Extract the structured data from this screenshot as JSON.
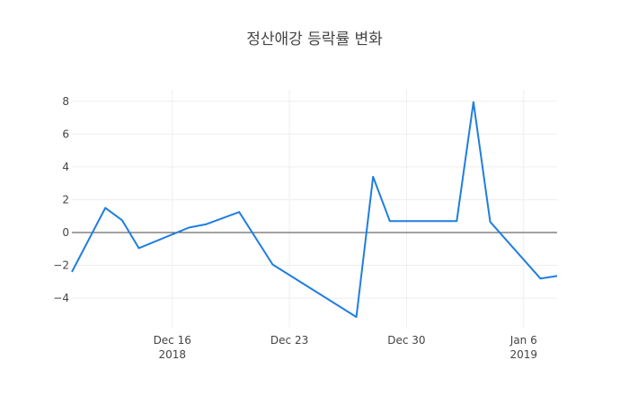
{
  "chart_data": {
    "type": "line",
    "title": "정산애강 등락률 변화",
    "xlabel": "",
    "ylabel": "",
    "x": [
      "2018-12-10",
      "2018-12-12",
      "2018-12-13",
      "2018-12-14",
      "2018-12-17",
      "2018-12-18",
      "2018-12-20",
      "2018-12-22",
      "2018-12-27",
      "2018-12-28",
      "2018-12-29",
      "2019-01-02",
      "2019-01-03",
      "2019-01-04",
      "2019-01-07",
      "2019-01-08"
    ],
    "series": [
      {
        "values": [
          -2.4,
          1.5,
          0.75,
          -0.95,
          0.3,
          0.5,
          1.25,
          -1.95,
          -5.15,
          3.4,
          0.7,
          0.7,
          7.95,
          0.65,
          -2.8,
          -2.65
        ]
      }
    ],
    "xlim": [
      "2018-12-10",
      "2019-01-08"
    ],
    "ylim": [
      -5.8,
      8.7
    ],
    "x_ticks": [
      {
        "date": "2018-12-16",
        "label": "Dec 16",
        "sublabel": "2018"
      },
      {
        "date": "2018-12-23",
        "label": "Dec 23",
        "sublabel": ""
      },
      {
        "date": "2018-12-30",
        "label": "Dec 30",
        "sublabel": ""
      },
      {
        "date": "2019-01-06",
        "label": "Jan 6",
        "sublabel": "2019"
      }
    ],
    "y_ticks": [
      {
        "value": 8,
        "label": "8"
      },
      {
        "value": 6,
        "label": "6"
      },
      {
        "value": 4,
        "label": "4"
      },
      {
        "value": 2,
        "label": "2"
      },
      {
        "value": 0,
        "label": "0"
      },
      {
        "value": -2,
        "label": "−2"
      },
      {
        "value": -4,
        "label": "−4"
      }
    ],
    "grid": true,
    "legend": "none",
    "colors": {
      "line": "#1f7ee0",
      "grid": "#eeeeee",
      "zeroline": "#444444",
      "text": "#444444"
    }
  }
}
